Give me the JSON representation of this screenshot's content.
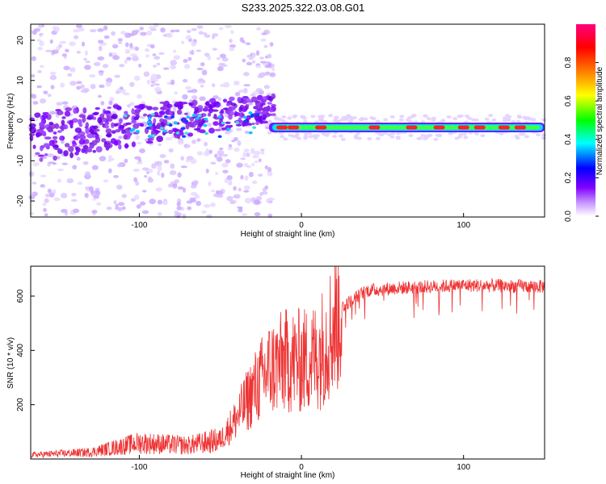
{
  "title": "S233.2025.322.03.08.G01",
  "chart_data": [
    {
      "type": "heatmap",
      "name": "spectrogram",
      "xlabel": "Height of straight line (km)",
      "ylabel": "Frequency (Hz)",
      "xlim": [
        -167,
        150
      ],
      "ylim": [
        -24,
        24
      ],
      "xticks": [
        -100,
        0,
        100
      ],
      "yticks": [
        -20,
        -10,
        0,
        10,
        20
      ],
      "colorbar": {
        "label": "Normalized spectral amplitude",
        "range": [
          0,
          1
        ],
        "ticks": [
          0.0,
          0.2,
          0.4,
          0.6,
          0.8
        ],
        "colormap": [
          "#ffffff",
          "#8000ff",
          "#0000ff",
          "#00ffff",
          "#00ff00",
          "#ffff00",
          "#ff8000",
          "#ff0000",
          "#ff0080"
        ]
      },
      "ridge": [
        {
          "x": -20,
          "f": -2
        },
        {
          "x": 0,
          "f": -2
        },
        {
          "x": 50,
          "f": -2
        },
        {
          "x": 80,
          "f": -2
        },
        {
          "x": 100,
          "f": -1
        },
        {
          "x": 150,
          "f": -1.5
        }
      ]
    },
    {
      "type": "line",
      "name": "snr",
      "xlabel": "Height of straight line (km)",
      "ylabel": "SNR (10 * v/v)",
      "xlim": [
        -167,
        150
      ],
      "ylim": [
        0,
        710
      ],
      "xticks": [
        -100,
        0,
        100
      ],
      "yticks": [
        200,
        400,
        600
      ],
      "color": "#ee3333",
      "trend": [
        {
          "x": -167,
          "y": 15
        },
        {
          "x": -130,
          "y": 25
        },
        {
          "x": -100,
          "y": 60
        },
        {
          "x": -70,
          "y": 50
        },
        {
          "x": -50,
          "y": 70
        },
        {
          "x": -40,
          "y": 150
        },
        {
          "x": -30,
          "y": 250
        },
        {
          "x": -20,
          "y": 330
        },
        {
          "x": -10,
          "y": 360
        },
        {
          "x": 0,
          "y": 360
        },
        {
          "x": 10,
          "y": 380
        },
        {
          "x": 18,
          "y": 470
        },
        {
          "x": 25,
          "y": 560
        },
        {
          "x": 40,
          "y": 620
        },
        {
          "x": 60,
          "y": 630
        },
        {
          "x": 100,
          "y": 640
        },
        {
          "x": 150,
          "y": 635
        }
      ]
    }
  ]
}
